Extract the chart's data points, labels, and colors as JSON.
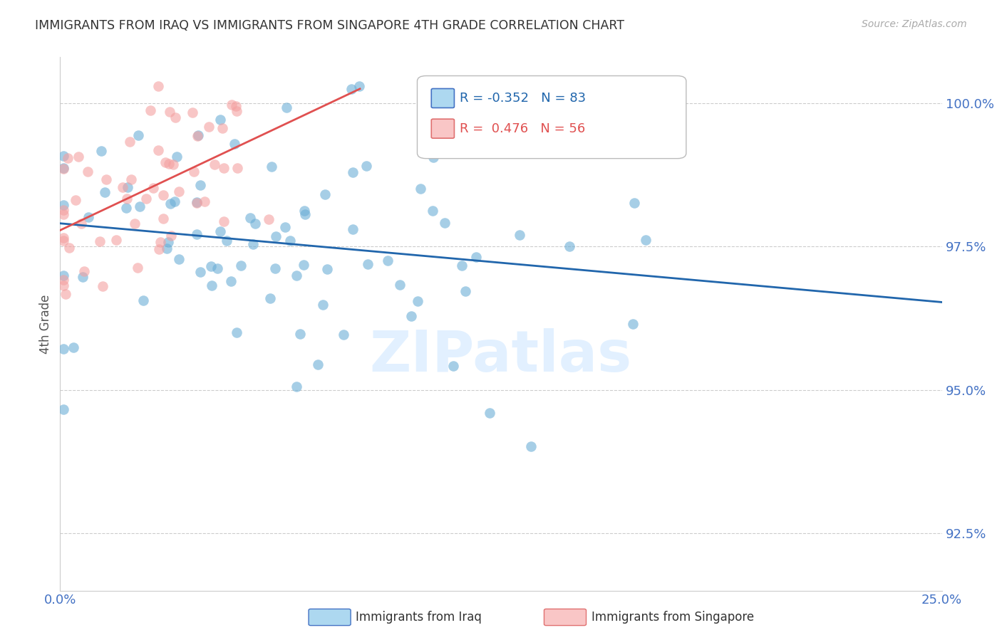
{
  "title": "IMMIGRANTS FROM IRAQ VS IMMIGRANTS FROM SINGAPORE 4TH GRADE CORRELATION CHART",
  "source": "Source: ZipAtlas.com",
  "ylabel": "4th Grade",
  "ytick_values": [
    0.925,
    0.95,
    0.975,
    1.0
  ],
  "xlim": [
    0.0,
    0.25
  ],
  "ylim": [
    0.915,
    1.008
  ],
  "legend_iraq_R": "-0.352",
  "legend_iraq_N": "83",
  "legend_sg_R": "0.476",
  "legend_sg_N": "56",
  "color_iraq": "#6baed6",
  "color_sg": "#f4a0a0",
  "color_iraq_line": "#2166ac",
  "color_sg_line": "#e05050",
  "color_axis_labels": "#4472c4",
  "color_title": "#333333"
}
